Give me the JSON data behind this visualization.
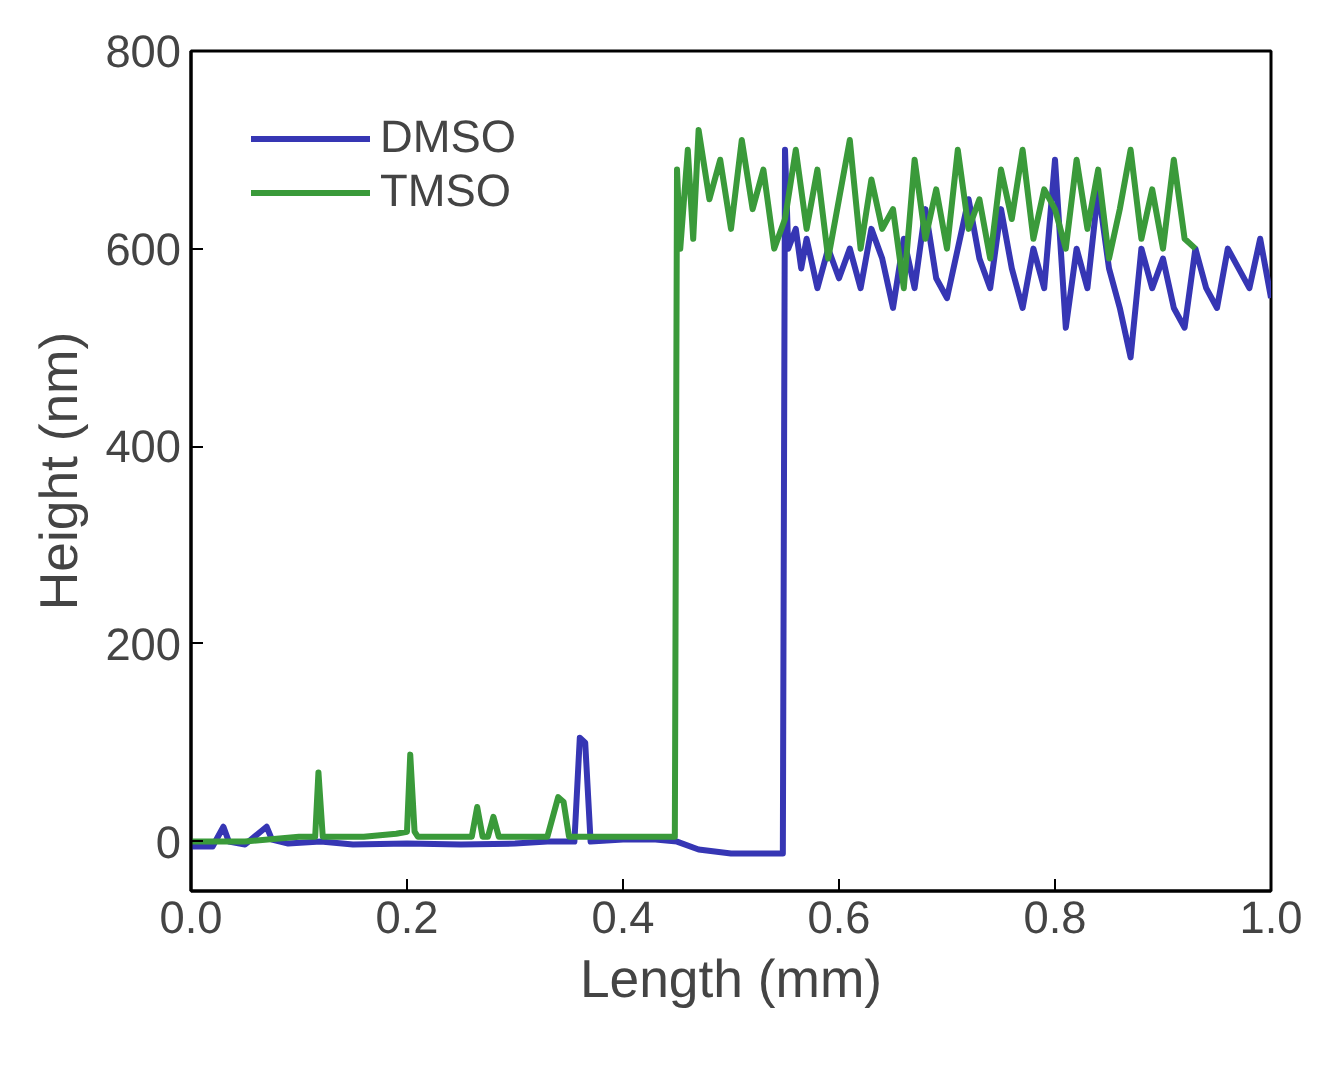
{
  "chart_data": {
    "type": "line",
    "xlabel": "Length (mm)",
    "ylabel": "Height (nm)",
    "xlim": [
      0,
      1.0
    ],
    "ylim": [
      -50,
      800
    ],
    "xticks": [
      {
        "value": 0,
        "label": "0.0"
      },
      {
        "value": 0.2,
        "label": "0.2"
      },
      {
        "value": 0.4,
        "label": "0.4"
      },
      {
        "value": 0.6,
        "label": "0.6"
      },
      {
        "value": 0.8,
        "label": "0.8"
      },
      {
        "value": 1.0,
        "label": "1.0"
      }
    ],
    "yticks": [
      0,
      200,
      400,
      600,
      800
    ],
    "grid": false,
    "legend": "top left",
    "line_style": "solid",
    "marker": "none",
    "series": [
      {
        "name": "DMSO",
        "color": "#3636b4",
        "x": [
          0,
          0.02,
          0.03,
          0.035,
          0.05,
          0.07,
          0.075,
          0.09,
          0.12,
          0.15,
          0.2,
          0.25,
          0.3,
          0.33,
          0.355,
          0.36,
          0.365,
          0.37,
          0.4,
          0.43,
          0.45,
          0.47,
          0.5,
          0.53,
          0.548,
          0.55,
          0.553,
          0.56,
          0.565,
          0.57,
          0.58,
          0.59,
          0.6,
          0.61,
          0.62,
          0.63,
          0.64,
          0.65,
          0.66,
          0.67,
          0.68,
          0.69,
          0.7,
          0.71,
          0.72,
          0.73,
          0.74,
          0.75,
          0.76,
          0.77,
          0.78,
          0.79,
          0.8,
          0.81,
          0.82,
          0.83,
          0.84,
          0.85,
          0.86,
          0.87,
          0.88,
          0.89,
          0.9,
          0.91,
          0.92,
          0.93,
          0.94,
          0.95,
          0.96,
          0.97,
          0.98,
          0.99,
          1.0
        ],
        "values": [
          -5,
          -5,
          15,
          0,
          -3,
          15,
          2,
          -2,
          0,
          -3,
          -2,
          -3,
          -2,
          0,
          0,
          105,
          100,
          0,
          2,
          2,
          0,
          -8,
          -12,
          -12,
          -12,
          700,
          600,
          620,
          580,
          610,
          560,
          600,
          570,
          600,
          560,
          620,
          590,
          540,
          610,
          560,
          640,
          570,
          550,
          600,
          650,
          590,
          560,
          640,
          580,
          540,
          600,
          560,
          690,
          520,
          600,
          560,
          660,
          580,
          540,
          490,
          600,
          560,
          590,
          540,
          520,
          600,
          560,
          540,
          600,
          580,
          560,
          610,
          550
        ]
      },
      {
        "name": "TMSO",
        "color": "#3a9a3a",
        "x": [
          0,
          0.05,
          0.1,
          0.115,
          0.118,
          0.122,
          0.13,
          0.16,
          0.19,
          0.2,
          0.203,
          0.207,
          0.21,
          0.24,
          0.26,
          0.265,
          0.27,
          0.275,
          0.28,
          0.285,
          0.3,
          0.33,
          0.34,
          0.345,
          0.35,
          0.38,
          0.42,
          0.448,
          0.45,
          0.453,
          0.46,
          0.465,
          0.47,
          0.48,
          0.49,
          0.5,
          0.51,
          0.52,
          0.53,
          0.54,
          0.55,
          0.56,
          0.57,
          0.58,
          0.59,
          0.6,
          0.61,
          0.62,
          0.63,
          0.64,
          0.65,
          0.66,
          0.67,
          0.68,
          0.69,
          0.7,
          0.71,
          0.72,
          0.73,
          0.74,
          0.75,
          0.76,
          0.77,
          0.78,
          0.79,
          0.8,
          0.81,
          0.82,
          0.83,
          0.84,
          0.85,
          0.86,
          0.87,
          0.88,
          0.89,
          0.9,
          0.91,
          0.92,
          0.93
        ],
        "values": [
          0,
          0,
          5,
          5,
          70,
          5,
          5,
          5,
          8,
          10,
          88,
          10,
          5,
          5,
          5,
          35,
          5,
          5,
          25,
          5,
          5,
          5,
          45,
          40,
          5,
          5,
          5,
          5,
          680,
          600,
          700,
          610,
          720,
          650,
          690,
          620,
          710,
          640,
          680,
          600,
          630,
          700,
          620,
          680,
          590,
          650,
          710,
          600,
          670,
          620,
          640,
          560,
          690,
          610,
          660,
          600,
          700,
          620,
          650,
          590,
          680,
          630,
          700,
          610,
          660,
          640,
          600,
          690,
          620,
          680,
          590,
          640,
          700,
          610,
          660,
          600,
          690,
          610,
          600
        ]
      }
    ]
  }
}
